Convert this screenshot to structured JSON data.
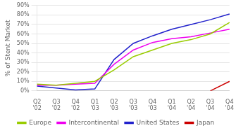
{
  "chart_data": {
    "type": "line",
    "categories": [
      "Q2\n'02",
      "Q3\n'02",
      "Q4\n'02",
      "Q1\n'03",
      "Q2\n'03",
      "Q3\n'03",
      "Q4\n'03",
      "Q1\n'04",
      "Q2\n'04",
      "Q3\n'04",
      "Q4\n'04"
    ],
    "series": [
      {
        "name": "Europe",
        "color": "#99cc00",
        "values": [
          7,
          6,
          8,
          10,
          22,
          36,
          43,
          50,
          54,
          60,
          72
        ]
      },
      {
        "name": "Intercontinental",
        "color": "#ee00ee",
        "values": [
          6,
          6,
          7,
          8,
          28,
          43,
          51,
          55,
          57,
          61,
          65
        ]
      },
      {
        "name": "United States",
        "color": "#2222cc",
        "values": [
          5,
          3,
          1,
          2,
          33,
          50,
          58,
          65,
          70,
          75,
          81
        ]
      },
      {
        "name": "Japan",
        "color": "#cc0000",
        "values": [
          null,
          null,
          null,
          null,
          null,
          null,
          null,
          null,
          null,
          0,
          10
        ]
      }
    ],
    "y_label": "% of Stent Market",
    "ylim": [
      0,
      90
    ],
    "yticks": [
      {
        "value": 0,
        "label": "0%"
      },
      {
        "value": 10,
        "label": "10%"
      },
      {
        "value": 20,
        "label": "20%"
      },
      {
        "value": 30,
        "label": "30%"
      },
      {
        "value": 40,
        "label": "40%"
      },
      {
        "value": 50,
        "label": "50%"
      },
      {
        "value": 60,
        "label": "60%"
      },
      {
        "value": 70,
        "label": "70%"
      },
      {
        "value": 80,
        "label": "80%"
      },
      {
        "value": 90,
        "label": "90%"
      }
    ],
    "grid": true,
    "legend": "bottom"
  }
}
